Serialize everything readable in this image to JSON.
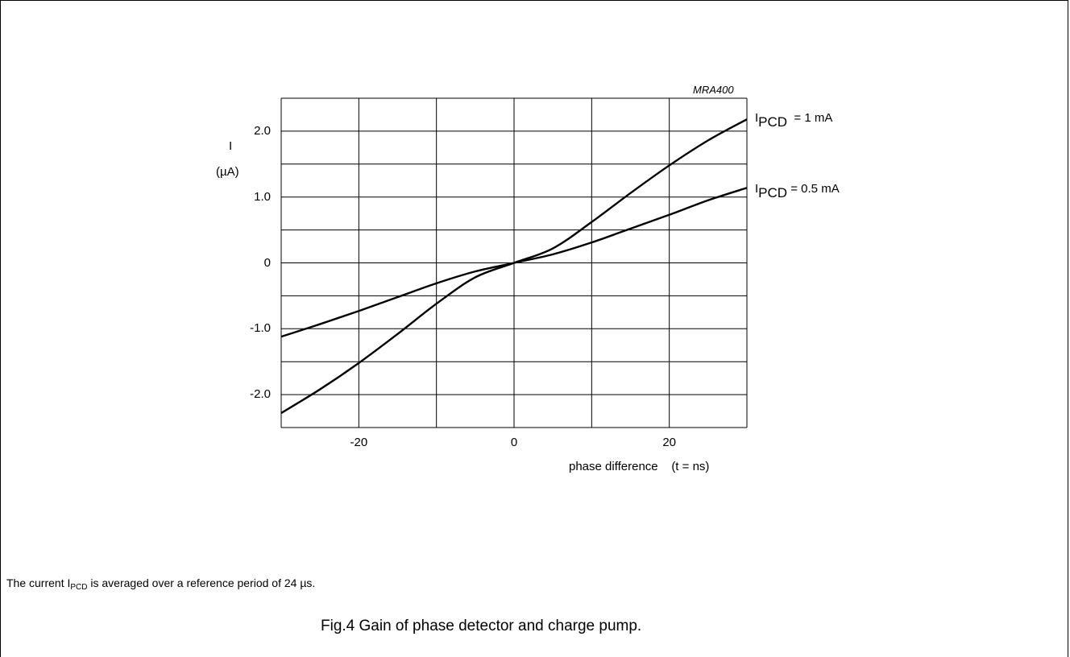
{
  "chart_data": {
    "type": "line",
    "code": "MRA400",
    "xlabel": "phase difference",
    "xunit": "(t = ns)",
    "ylabel": "I",
    "yunit": "(µA)",
    "xlim": [
      -30,
      30
    ],
    "ylim": [
      -2.5,
      2.5
    ],
    "x_ticks": [
      {
        "value": -20,
        "label": "-20"
      },
      {
        "value": 0,
        "label": "0"
      },
      {
        "value": 20,
        "label": "20"
      }
    ],
    "y_ticks": [
      {
        "value": 2.0,
        "label": "2.0"
      },
      {
        "value": 1.0,
        "label": "1.0"
      },
      {
        "value": 0,
        "label": "0"
      },
      {
        "value": -1.0,
        "label": "-1.0"
      },
      {
        "value": -2.0,
        "label": "-2.0"
      }
    ],
    "grid": true,
    "series": [
      {
        "name": "I_PCD = 1 mA",
        "label_main": "I",
        "label_sub": "PCD",
        "label_rest": "= 1 mA",
        "x": [
          -30,
          -25,
          -20,
          -15,
          -10,
          -5,
          0,
          5,
          10,
          15,
          20,
          25,
          30
        ],
        "y": [
          -2.28,
          -1.92,
          -1.52,
          -1.08,
          -0.62,
          -0.22,
          0,
          0.22,
          0.62,
          1.06,
          1.48,
          1.86,
          2.18
        ]
      },
      {
        "name": "I_PCD = 0.5 mA",
        "label_main": "I",
        "label_sub": "PCD",
        "label_rest": "= 0.5 mA",
        "x": [
          -30,
          -25,
          -20,
          -15,
          -10,
          -5,
          0,
          5,
          10,
          15,
          20,
          25,
          30
        ],
        "y": [
          -1.12,
          -0.93,
          -0.73,
          -0.52,
          -0.31,
          -0.13,
          0,
          0.13,
          0.31,
          0.52,
          0.73,
          0.95,
          1.14
        ]
      }
    ]
  },
  "note": {
    "before": "The current I",
    "sub": "PCD",
    "after": " is averaged over a reference period of 24 µs."
  },
  "caption": "Fig.4  Gain of phase detector and charge pump."
}
